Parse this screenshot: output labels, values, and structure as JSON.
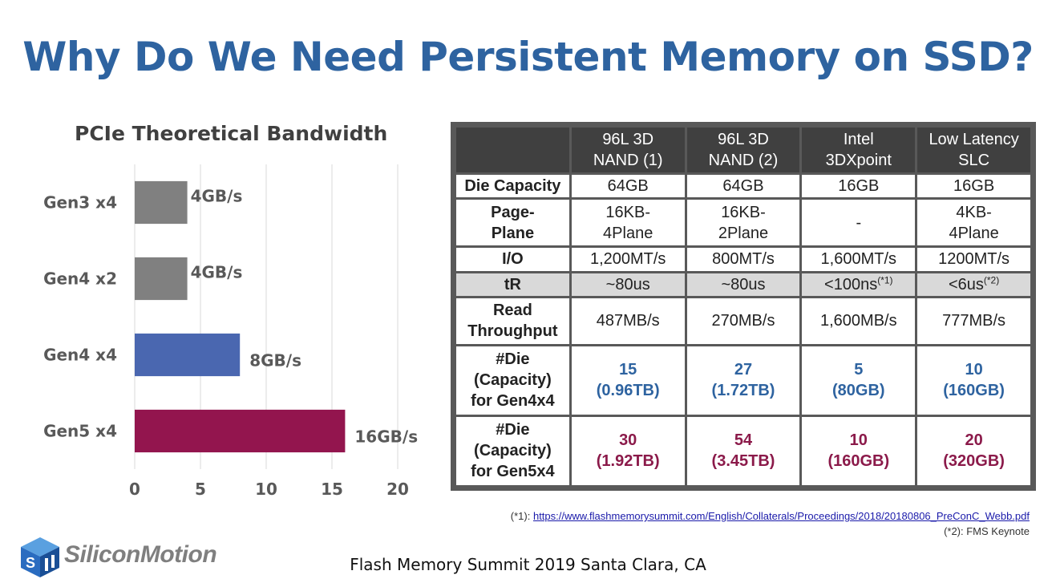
{
  "slide": {
    "title": "Why Do We Need Persistent Memory on SSD?",
    "footer": "Flash Memory Summit 2019 Santa Clara, CA"
  },
  "logo": {
    "text": "SiliconMotion",
    "icon": "silicon-motion-cube-logo"
  },
  "chart_data": {
    "type": "bar",
    "orientation": "horizontal",
    "title": "PCIe Theoretical Bandwidth",
    "categories": [
      "Gen3 x4",
      "Gen4 x2",
      "Gen4 x4",
      "Gen5 x4"
    ],
    "values": [
      4,
      4,
      8,
      16
    ],
    "data_labels": [
      "4GB/s",
      "4GB/s",
      "8GB/s",
      "16GB/s"
    ],
    "colors": [
      "#808080",
      "#808080",
      "#4a67b0",
      "#93154e"
    ],
    "xlim": [
      0,
      20
    ],
    "xticks": [
      "0",
      "5",
      "10",
      "15",
      "20"
    ],
    "grid": "vertical",
    "legend": "none"
  },
  "table": {
    "headers": [
      "",
      "96L 3D\nNAND (1)",
      "96L 3D\nNAND (2)",
      "Intel\n3DXpoint",
      "Low Latency\nSLC"
    ],
    "rows": [
      {
        "label": "Die Capacity",
        "cells": [
          "64GB",
          "64GB",
          "16GB",
          "16GB"
        ],
        "style": "plain"
      },
      {
        "label": "Page-\nPlane",
        "cells": [
          "16KB-\n4Plane",
          "16KB-\n2Plane",
          "-",
          "4KB-\n4Plane"
        ],
        "style": "plain"
      },
      {
        "label": "I/O",
        "cells": [
          "1,200MT/s",
          "800MT/s",
          "1,600MT/s",
          "1200MT/s"
        ],
        "style": "plain"
      },
      {
        "label": "tR",
        "cells": [
          "~80us",
          "~80us",
          "<100ns",
          "<6us"
        ],
        "sups": [
          "",
          "",
          "(*1)",
          "(*2)"
        ],
        "style": "shaded"
      },
      {
        "label": "Read\nThroughput",
        "cells": [
          "487MB/s",
          "270MB/s",
          "1,600MB/s",
          "777MB/s"
        ],
        "style": "plain"
      },
      {
        "label": "#Die (Capacity)\nfor Gen4x4",
        "cells": [
          "15\n(0.96TB)",
          "27\n(1.72TB)",
          "5\n(80GB)",
          "10\n(160GB)"
        ],
        "style": "blue"
      },
      {
        "label": "#Die (Capacity)\nfor Gen5x4",
        "cells": [
          "30\n(1.92TB)",
          "54\n(3.45TB)",
          "10\n(160GB)",
          "20\n(320GB)"
        ],
        "style": "maroon"
      }
    ]
  },
  "notes": {
    "note1_prefix": "(*1): ",
    "note1_link": "https://www.flashmemorysummit.com/English/Collaterals/Proceedings/2018/20180806_PreConC_Webb.pdf",
    "note2": "(*2): FMS Keynote"
  }
}
